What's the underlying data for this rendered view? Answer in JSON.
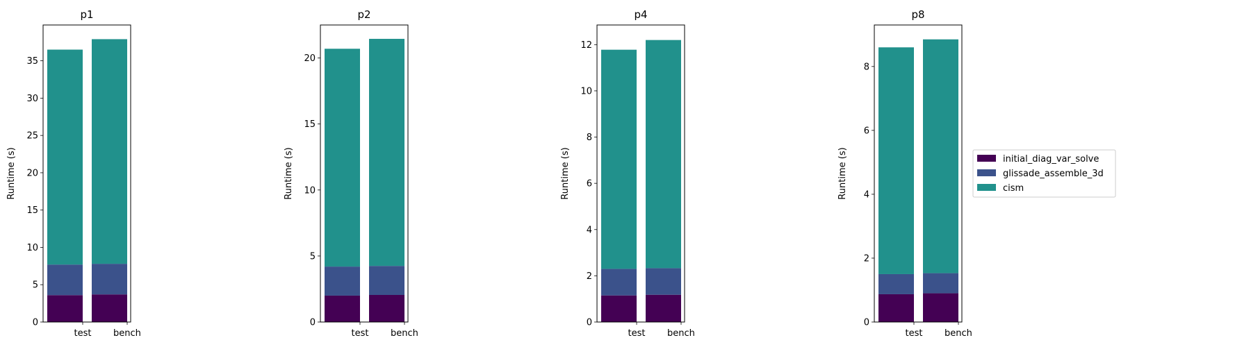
{
  "chart_data": [
    {
      "type": "bar",
      "stacked": true,
      "title": "p1",
      "categories": [
        "test",
        "bench"
      ],
      "ylabel": "Runtime (s)",
      "ylim": [
        0,
        39.8
      ],
      "yticks": [
        0,
        5,
        10,
        15,
        20,
        25,
        30,
        35
      ],
      "series": [
        {
          "name": "initial_diag_var_solve",
          "values": [
            3.6,
            3.7
          ]
        },
        {
          "name": "glissade_assemble_3d",
          "values": [
            4.1,
            4.1
          ]
        },
        {
          "name": "cism",
          "values": [
            28.8,
            30.1
          ]
        }
      ]
    },
    {
      "type": "bar",
      "stacked": true,
      "title": "p2",
      "categories": [
        "test",
        "bench"
      ],
      "ylabel": "Runtime (s)",
      "ylim": [
        0,
        22.5
      ],
      "yticks": [
        0,
        5,
        10,
        15,
        20
      ],
      "series": [
        {
          "name": "initial_diag_var_solve",
          "values": [
            2.0,
            2.05
          ]
        },
        {
          "name": "glissade_assemble_3d",
          "values": [
            2.2,
            2.2
          ]
        },
        {
          "name": "cism",
          "values": [
            16.5,
            17.2
          ]
        }
      ]
    },
    {
      "type": "bar",
      "stacked": true,
      "title": "p4",
      "categories": [
        "test",
        "bench"
      ],
      "ylabel": "Runtime (s)",
      "ylim": [
        0,
        12.85
      ],
      "yticks": [
        0,
        2,
        4,
        6,
        8,
        10,
        12
      ],
      "series": [
        {
          "name": "initial_diag_var_solve",
          "values": [
            1.15,
            1.18
          ]
        },
        {
          "name": "glissade_assemble_3d",
          "values": [
            1.15,
            1.15
          ]
        },
        {
          "name": "cism",
          "values": [
            9.48,
            9.87
          ]
        }
      ]
    },
    {
      "type": "bar",
      "stacked": true,
      "title": "p8",
      "categories": [
        "test",
        "bench"
      ],
      "ylabel": "Runtime (s)",
      "ylim": [
        0,
        9.3
      ],
      "yticks": [
        0,
        2,
        4,
        6,
        8
      ],
      "series": [
        {
          "name": "initial_diag_var_solve",
          "values": [
            0.87,
            0.9
          ]
        },
        {
          "name": "glissade_assemble_3d",
          "values": [
            0.63,
            0.63
          ]
        },
        {
          "name": "cism",
          "values": [
            7.1,
            7.32
          ]
        }
      ]
    }
  ],
  "legend": {
    "placement": "right of last panel",
    "entries": [
      "initial_diag_var_solve",
      "glissade_assemble_3d",
      "cism"
    ]
  },
  "colors": {
    "initial_diag_var_solve": "#440154",
    "glissade_assemble_3d": "#3b528b",
    "cism": "#21918c"
  }
}
